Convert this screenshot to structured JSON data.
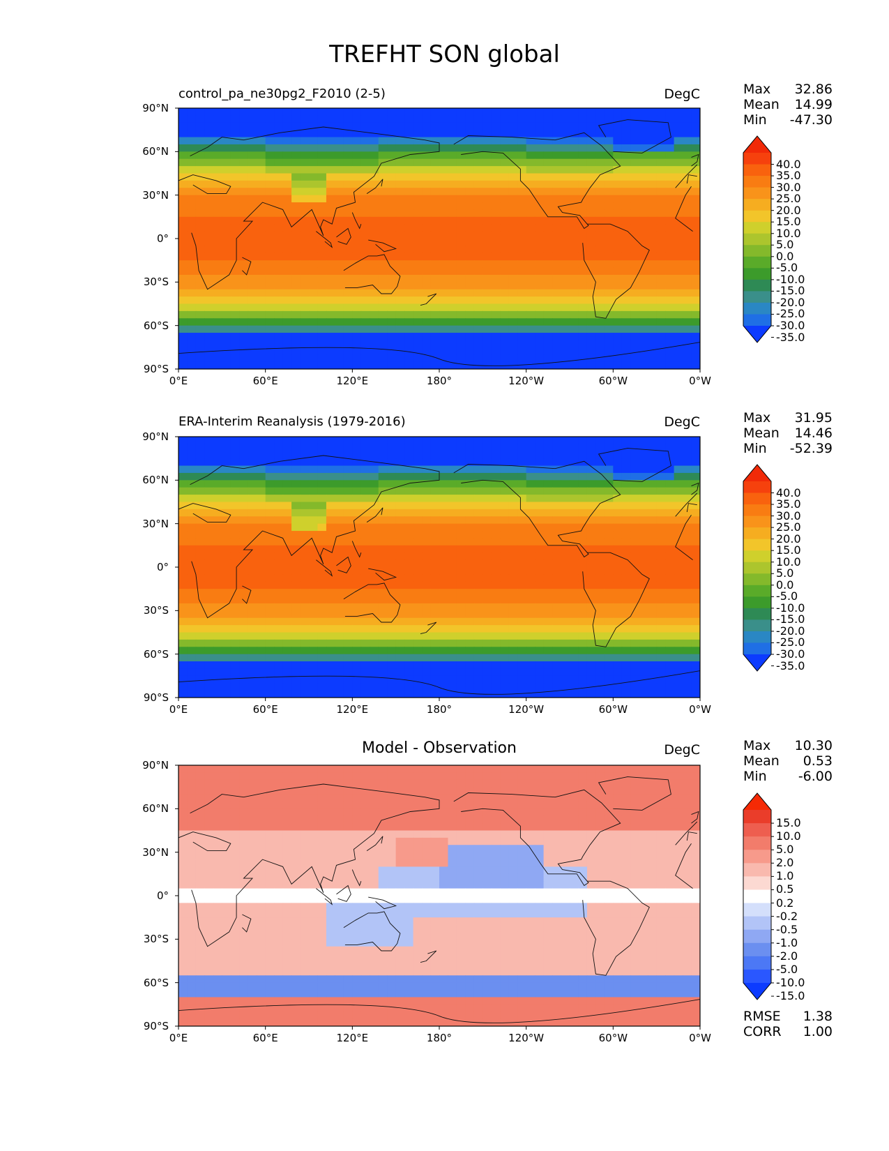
{
  "figure_title": "TREFHT SON global",
  "colors": {
    "abs_levels": [
      "#0c3bff",
      "#1f6fe5",
      "#2a87c4",
      "#3a8f8a",
      "#2e8a55",
      "#3c9b2b",
      "#5aab29",
      "#84b92b",
      "#acc52d",
      "#cfd02c",
      "#f2c52a",
      "#f6ad20",
      "#f9931a",
      "#f97c12",
      "#f9620e",
      "#f6410d",
      "#f12a08"
    ],
    "diff_levels": [
      "#0c3bff",
      "#2a57ff",
      "#4c78f5",
      "#6b8ff0",
      "#8fa8f3",
      "#b2c4f7",
      "#d4dffb",
      "#ffffff",
      "#fcd9d2",
      "#f9b9ae",
      "#f79a8b",
      "#f27c6b",
      "#ee5e4f",
      "#ea3d2a",
      "#f52a05"
    ]
  },
  "chart_data": [
    {
      "type": "heatmap",
      "title": "control_pa_ne30pg2_F2010 (2-5)",
      "units": "DegC",
      "stats": {
        "Max": "32.86",
        "Mean": "14.99",
        "Min": "-47.30"
      },
      "xlabel": "",
      "ylabel": "",
      "x_ticks": [
        "0°E",
        "60°E",
        "120°E",
        "180°",
        "120°W",
        "60°W",
        "0°W"
      ],
      "y_ticks": [
        "90°N",
        "60°N",
        "30°N",
        "0°",
        "30°S",
        "60°S",
        "90°S"
      ],
      "xlim": [
        0,
        360
      ],
      "ylim": [
        -90,
        90
      ],
      "colorbar_ticks": [
        "40.0",
        "35.0",
        "30.0",
        "25.0",
        "20.0",
        "15.0",
        "10.0",
        "5.0",
        "0.0",
        "-5.0",
        "-10.0",
        "-15.0",
        "-20.0",
        "-25.0",
        "-30.0",
        "-35.0"
      ],
      "field": "absolute"
    },
    {
      "type": "heatmap",
      "title": "ERA-Interim Reanalysis (1979-2016)",
      "units": "DegC",
      "stats": {
        "Max": "31.95",
        "Mean": "14.46",
        "Min": "-52.39"
      },
      "xlabel": "",
      "ylabel": "",
      "x_ticks": [
        "0°E",
        "60°E",
        "120°E",
        "180°",
        "120°W",
        "60°W",
        "0°W"
      ],
      "y_ticks": [
        "90°N",
        "60°N",
        "30°N",
        "0°",
        "30°S",
        "60°S",
        "90°S"
      ],
      "xlim": [
        0,
        360
      ],
      "ylim": [
        -90,
        90
      ],
      "colorbar_ticks": [
        "40.0",
        "35.0",
        "30.0",
        "25.0",
        "20.0",
        "15.0",
        "10.0",
        "5.0",
        "0.0",
        "-5.0",
        "-10.0",
        "-15.0",
        "-20.0",
        "-25.0",
        "-30.0",
        "-35.0"
      ],
      "field": "absolute"
    },
    {
      "type": "heatmap",
      "title": "Model - Observation",
      "units": "DegC",
      "stats": {
        "Max": "10.30",
        "Mean": "0.53",
        "Min": "-6.00"
      },
      "extra_stats": {
        "RMSE": "1.38",
        "CORR": "1.00"
      },
      "xlabel": "",
      "ylabel": "",
      "x_ticks": [
        "0°E",
        "60°E",
        "120°E",
        "180°",
        "120°W",
        "60°W",
        "0°W"
      ],
      "y_ticks": [
        "90°N",
        "60°N",
        "30°N",
        "0°",
        "30°S",
        "60°S",
        "90°S"
      ],
      "xlim": [
        0,
        360
      ],
      "ylim": [
        -90,
        90
      ],
      "colorbar_ticks": [
        "15.0",
        "10.0",
        "5.0",
        "2.0",
        "1.0",
        "0.5",
        "0.2",
        "-0.2",
        "-0.5",
        "-1.0",
        "-2.0",
        "-5.0",
        "-10.0",
        "-15.0"
      ],
      "field": "difference"
    }
  ]
}
